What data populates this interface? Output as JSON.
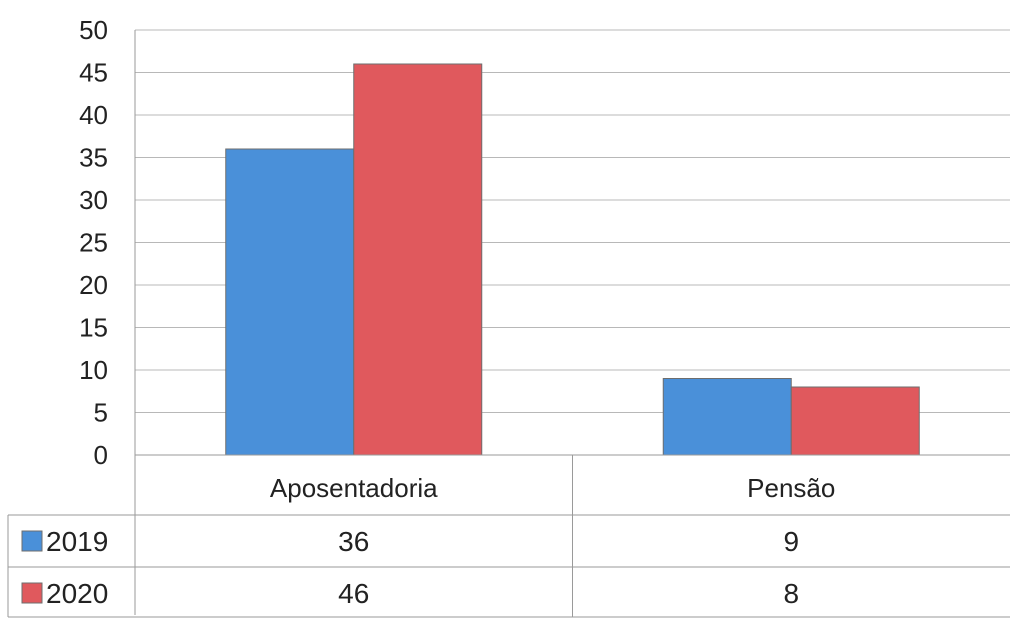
{
  "chart_data": {
    "type": "bar",
    "categories": [
      "Aposentadoria",
      "Pensão"
    ],
    "series": [
      {
        "name": "2019",
        "values": [
          36,
          9
        ],
        "color": "#4a90d9"
      },
      {
        "name": "2020",
        "values": [
          46,
          8
        ],
        "color": "#e0595d"
      }
    ],
    "ylim": [
      0,
      50
    ],
    "yticks": [
      0,
      5,
      10,
      15,
      20,
      25,
      30,
      35,
      40,
      45,
      50
    ],
    "grid": true,
    "data_table": true
  }
}
